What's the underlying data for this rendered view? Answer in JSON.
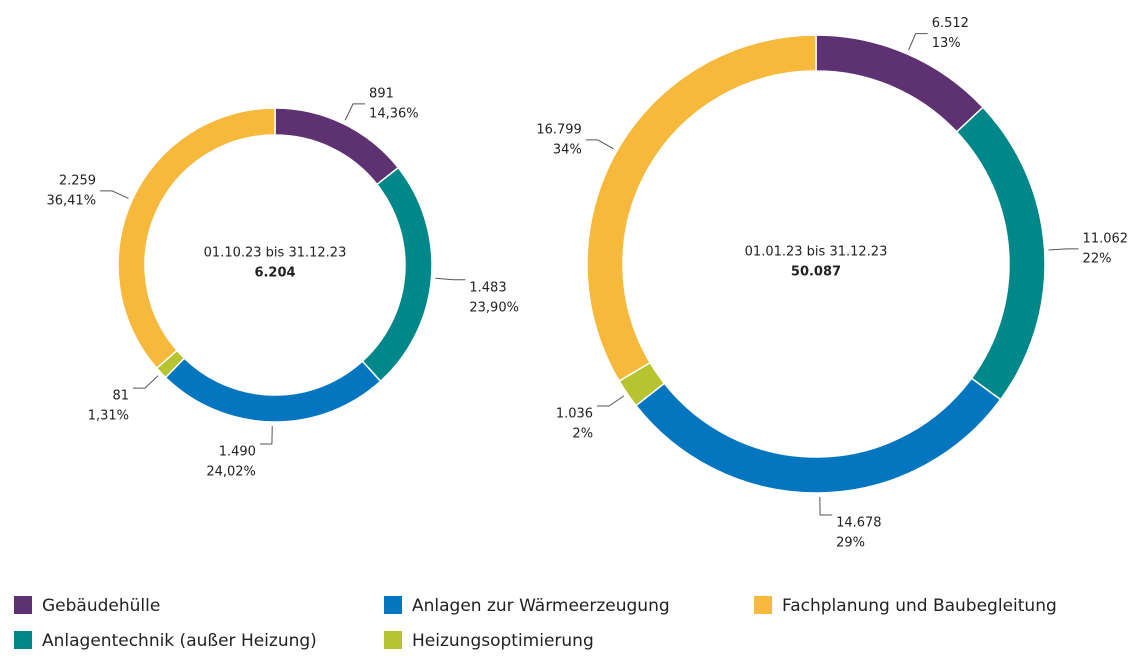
{
  "chart_data": [
    {
      "type": "donut",
      "center_label": "01.10.23 bis 31.12.23",
      "total": "6.204",
      "categories": [
        "Gebäudehülle",
        "Anlagentechnik (außer Heizung)",
        "Anlagen zur Wärmeerzeugung",
        "Heizungsoptimierung",
        "Fachplanung und Baubegleitung"
      ],
      "colors": [
        "#5e3173",
        "#00878a",
        "#0476c0",
        "#b5c42f",
        "#f6b93b"
      ],
      "values": [
        891,
        1483,
        1490,
        81,
        2259
      ],
      "value_labels": [
        "891",
        "1.483",
        "1.490",
        "81",
        "2.259"
      ],
      "percent_labels": [
        "14,36%",
        "23,90%",
        "24,02%",
        "1,31%",
        "36,41%"
      ]
    },
    {
      "type": "donut",
      "center_label": "01.01.23 bis 31.12.23",
      "total": "50.087",
      "categories": [
        "Gebäudehülle",
        "Anlagentechnik (außer Heizung)",
        "Anlagen zur Wärmeerzeugung",
        "Heizungsoptimierung",
        "Fachplanung und Baubegleitung"
      ],
      "colors": [
        "#5e3173",
        "#00878a",
        "#0476c0",
        "#b5c42f",
        "#f6b93b"
      ],
      "values": [
        6512,
        11062,
        14678,
        1036,
        16799
      ],
      "value_labels": [
        "6.512",
        "11.062",
        "14.678",
        "1.036",
        "16.799"
      ],
      "percent_labels": [
        "13%",
        "22%",
        "29%",
        "2%",
        "34%"
      ]
    }
  ]
}
